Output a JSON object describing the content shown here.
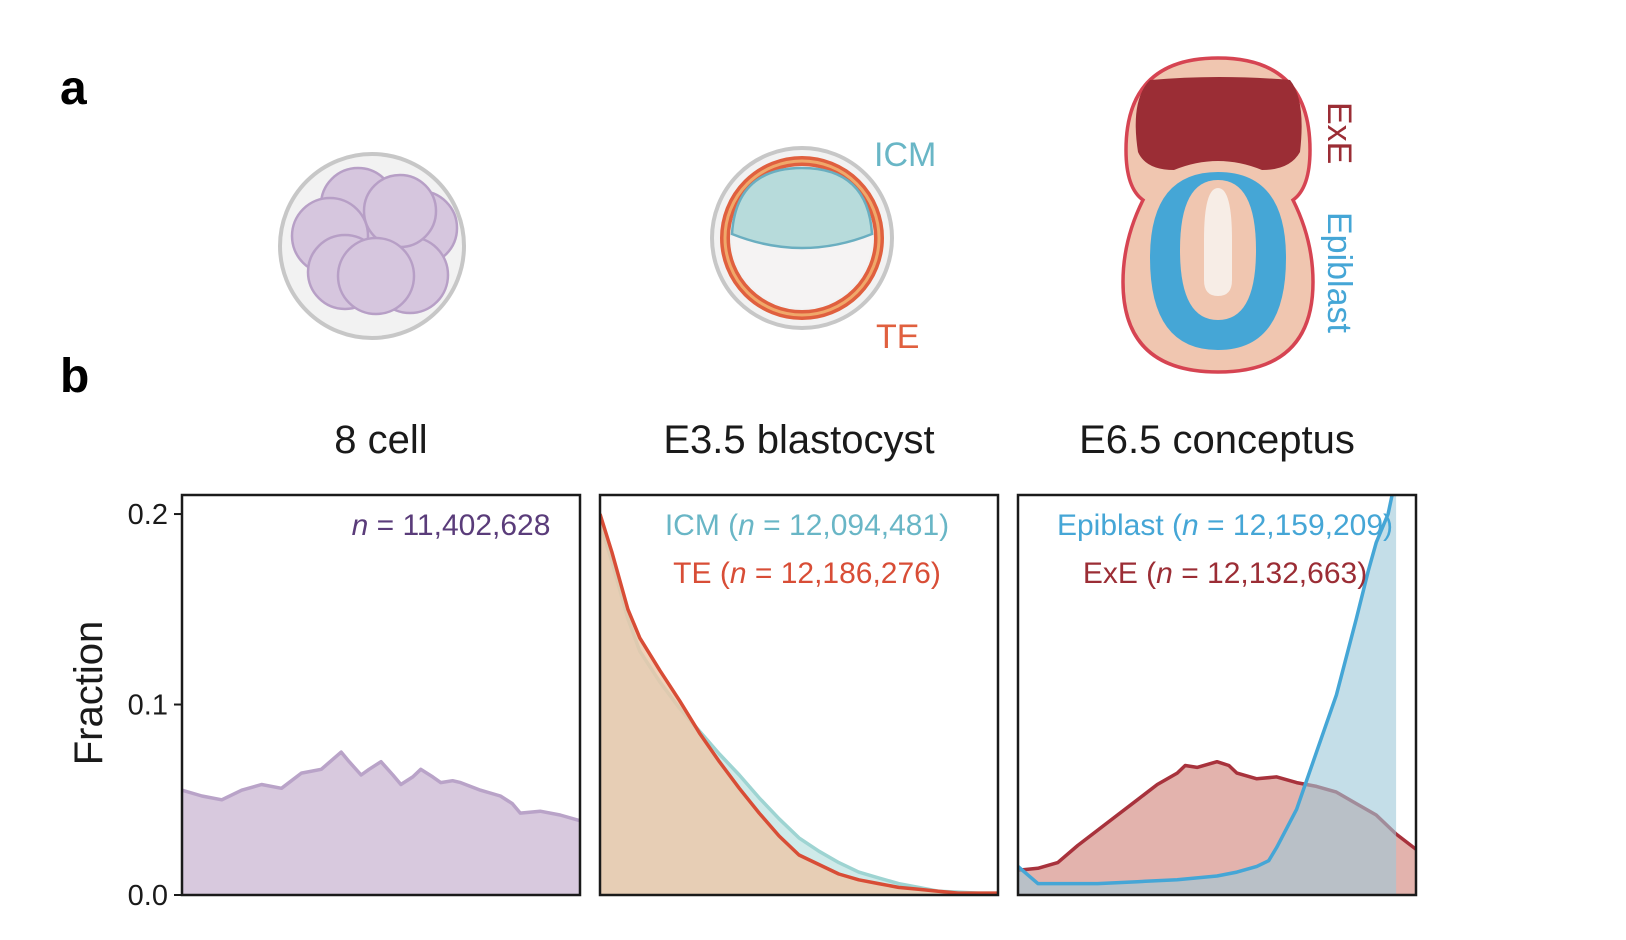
{
  "panel_a": {
    "letter": "a",
    "icm_label": "ICM",
    "te_label": "TE",
    "exe_label": "ExE",
    "epiblast_label": "Epiblast",
    "colors": {
      "eight_cell_fill": "#d6c6de",
      "eight_cell_stroke": "#b79fc6",
      "zona": "#c7c7c7",
      "zona_fill": "#f2f2f2",
      "icm": "#b7dbdb",
      "te": "#e0603f",
      "te_inner": "#f0a86a",
      "exe": "#9b2d35",
      "outer_red": "#d64452",
      "skin": "#f0c6b0",
      "epiblast": "#45a6d6",
      "cavity": "#f7ede6"
    }
  },
  "panel_b": {
    "letter": "b"
  },
  "chart_data": [
    {
      "type": "area",
      "title": "8 cell",
      "ylabel": "Fraction",
      "ylim": [
        0,
        0.21
      ],
      "yticks": [
        0.0,
        0.1,
        0.2
      ],
      "ytick_labels": [
        "0.0",
        "0.1",
        "0.2"
      ],
      "xlim": [
        0,
        1
      ],
      "annotations": [
        {
          "parts": [
            {
              "t": "n",
              "i": true
            },
            {
              "t": " = 11,402,628",
              "i": false
            }
          ],
          "color": "#5a3c7a"
        }
      ],
      "series": [
        {
          "color": "#7a5a9a",
          "fill": "#d8c9de",
          "fill_opacity": 1,
          "stroke": "#b9a3c8",
          "x": [
            0.0,
            0.05,
            0.1,
            0.15,
            0.2,
            0.25,
            0.3,
            0.35,
            0.4,
            0.42,
            0.45,
            0.47,
            0.5,
            0.53,
            0.55,
            0.58,
            0.6,
            0.63,
            0.65,
            0.68,
            0.7,
            0.75,
            0.8,
            0.83,
            0.85,
            0.9,
            0.95,
            1.0
          ],
          "y": [
            0.055,
            0.052,
            0.05,
            0.055,
            0.058,
            0.056,
            0.064,
            0.066,
            0.075,
            0.07,
            0.063,
            0.066,
            0.07,
            0.063,
            0.058,
            0.062,
            0.066,
            0.062,
            0.059,
            0.06,
            0.059,
            0.055,
            0.052,
            0.048,
            0.043,
            0.044,
            0.042,
            0.039
          ]
        }
      ]
    },
    {
      "type": "area",
      "title": "E3.5 blastocyst",
      "ylim": [
        0,
        0.21
      ],
      "xlim": [
        0,
        1
      ],
      "annotations": [
        {
          "parts": [
            {
              "t": "ICM (",
              "i": false
            },
            {
              "t": "n",
              "i": true
            },
            {
              "t": " = 12,094,481)",
              "i": false
            }
          ],
          "color": "#69b6c6"
        },
        {
          "parts": [
            {
              "t": "TE (",
              "i": false
            },
            {
              "t": "n",
              "i": true
            },
            {
              "t": " = 12,186,276)",
              "i": false
            }
          ],
          "color": "#d84d36"
        }
      ],
      "series": [
        {
          "name": "ICM",
          "color": "#8fcfcf",
          "fill": "#bfe3e1",
          "fill_opacity": 0.75,
          "stroke": "#9ed4d2",
          "x": [
            0.0,
            0.03,
            0.07,
            0.1,
            0.15,
            0.2,
            0.25,
            0.3,
            0.35,
            0.4,
            0.45,
            0.5,
            0.55,
            0.6,
            0.65,
            0.7,
            0.75,
            0.8,
            0.85,
            0.9,
            0.95,
            1.0
          ],
          "y": [
            0.195,
            0.175,
            0.145,
            0.128,
            0.112,
            0.098,
            0.086,
            0.074,
            0.063,
            0.051,
            0.04,
            0.03,
            0.023,
            0.017,
            0.012,
            0.009,
            0.006,
            0.004,
            0.002,
            0.0015,
            0.001,
            0.001
          ]
        },
        {
          "name": "TE",
          "color": "#d84d36",
          "fill": "#ecc7a8",
          "fill_opacity": 0.8,
          "stroke": "#d84d36",
          "x": [
            0.0,
            0.03,
            0.07,
            0.1,
            0.15,
            0.2,
            0.25,
            0.3,
            0.35,
            0.4,
            0.45,
            0.5,
            0.55,
            0.6,
            0.65,
            0.7,
            0.75,
            0.8,
            0.85,
            0.9,
            0.95,
            1.0
          ],
          "y": [
            0.2,
            0.18,
            0.15,
            0.135,
            0.118,
            0.102,
            0.085,
            0.07,
            0.056,
            0.043,
            0.031,
            0.021,
            0.016,
            0.011,
            0.008,
            0.006,
            0.004,
            0.003,
            0.002,
            0.001,
            0.001,
            0.001
          ]
        }
      ]
    },
    {
      "type": "area",
      "title": "E6.5 conceptus",
      "ylim": [
        0,
        0.21
      ],
      "xlim": [
        0,
        1
      ],
      "annotations": [
        {
          "parts": [
            {
              "t": "Epiblast (",
              "i": false
            },
            {
              "t": "n",
              "i": true
            },
            {
              "t": " = 12,159,209)",
              "i": false
            }
          ],
          "color": "#45a6d6"
        },
        {
          "parts": [
            {
              "t": "ExE (",
              "i": false
            },
            {
              "t": "n",
              "i": true
            },
            {
              "t": " = 12,132,663)",
              "i": false
            }
          ],
          "color": "#9b2d35"
        }
      ],
      "series": [
        {
          "name": "ExE",
          "color": "#a8323c",
          "fill": "#e3b3ad",
          "fill_opacity": 1,
          "stroke": "#a8323c",
          "x": [
            0.0,
            0.05,
            0.1,
            0.15,
            0.2,
            0.25,
            0.3,
            0.35,
            0.4,
            0.42,
            0.45,
            0.5,
            0.53,
            0.55,
            0.6,
            0.65,
            0.7,
            0.75,
            0.8,
            0.85,
            0.9,
            0.95,
            1.0
          ],
          "y": [
            0.013,
            0.014,
            0.017,
            0.026,
            0.034,
            0.042,
            0.05,
            0.058,
            0.064,
            0.068,
            0.067,
            0.07,
            0.068,
            0.064,
            0.061,
            0.062,
            0.059,
            0.057,
            0.054,
            0.048,
            0.042,
            0.032,
            0.024
          ]
        },
        {
          "name": "Epiblast",
          "color": "#45a6d6",
          "fill": "#9cc8d8",
          "fill_opacity": 0.6,
          "stroke": "#45a6d6",
          "x": [
            0.0,
            0.05,
            0.1,
            0.2,
            0.3,
            0.4,
            0.5,
            0.55,
            0.6,
            0.63,
            0.65,
            0.7,
            0.75,
            0.8,
            0.85,
            0.88,
            0.9,
            0.93,
            0.95
          ],
          "y": [
            0.015,
            0.006,
            0.006,
            0.006,
            0.007,
            0.008,
            0.01,
            0.012,
            0.015,
            0.018,
            0.025,
            0.045,
            0.075,
            0.105,
            0.145,
            0.17,
            0.185,
            0.2,
            0.22
          ]
        }
      ]
    }
  ]
}
